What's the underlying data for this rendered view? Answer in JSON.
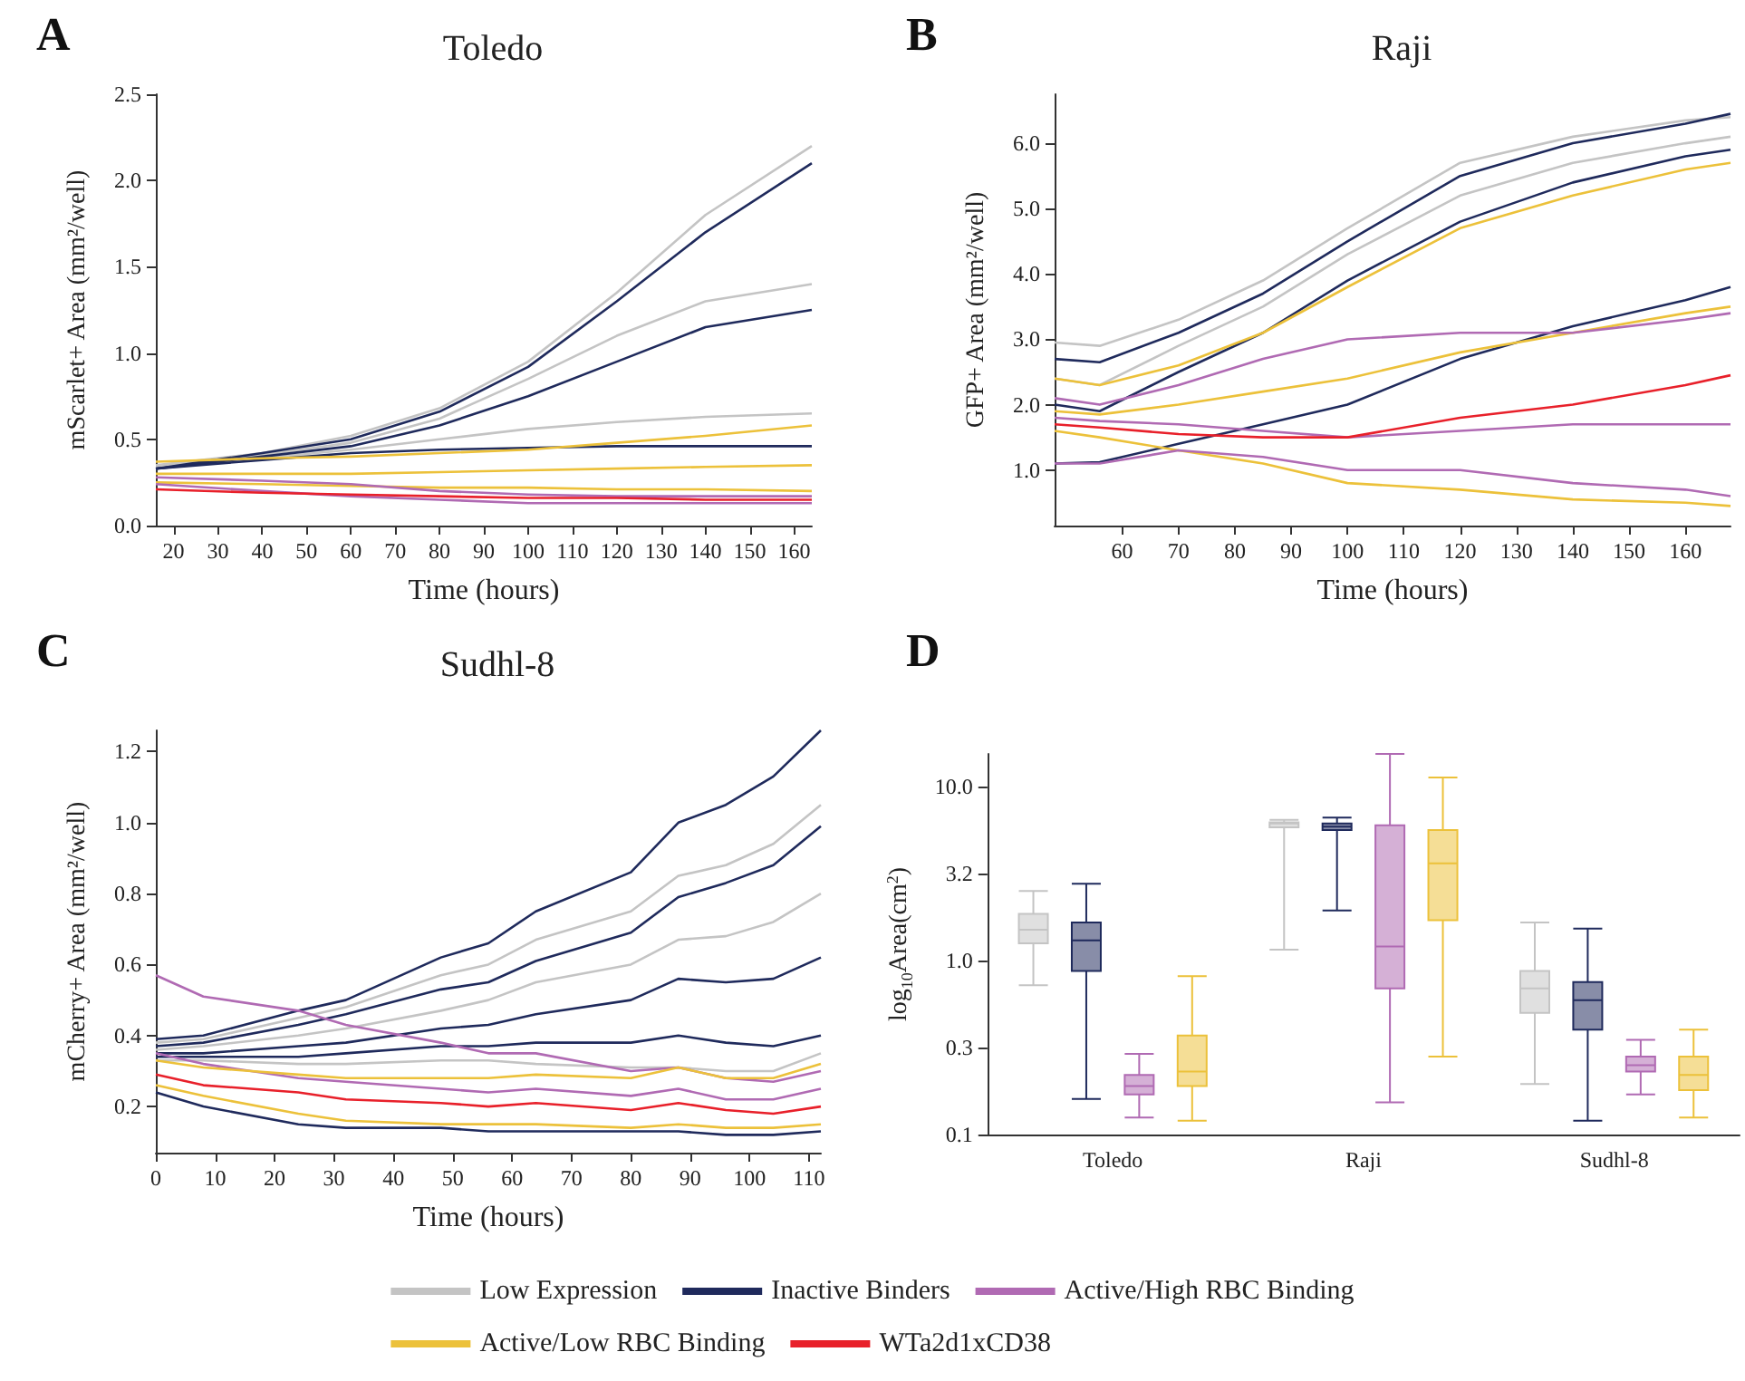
{
  "chart_data": [
    {
      "type": "line",
      "title": "Toledo",
      "annotations": [
        "A"
      ],
      "xlabel": "Time (hours)",
      "ylabel": "mScarlet+ Area (mm²/well)",
      "marker": "none",
      "x": [
        16,
        40,
        60,
        80,
        100,
        120,
        140,
        164
      ],
      "xlim": [
        16,
        164
      ],
      "xticks": [
        20,
        30,
        40,
        50,
        60,
        70,
        80,
        90,
        100,
        110,
        120,
        130,
        140,
        150,
        160
      ],
      "ylim": [
        0,
        2.5
      ],
      "yticks": [
        {
          "value": 0,
          "label": "0.0"
        },
        0.5,
        {
          "value": 1,
          "label": "1.0"
        },
        1.5,
        {
          "value": 2,
          "label": "2.0"
        },
        2.5
      ],
      "series": [
        {
          "color": "#c4c4c4",
          "values": [
            0.35,
            0.42,
            0.52,
            0.68,
            0.95,
            1.35,
            1.8,
            2.2
          ]
        },
        {
          "color": "#c4c4c4",
          "values": [
            0.34,
            0.41,
            0.48,
            0.62,
            0.85,
            1.1,
            1.3,
            1.4
          ]
        },
        {
          "color": "#c4c4c4",
          "values": [
            0.33,
            0.39,
            0.44,
            0.5,
            0.56,
            0.6,
            0.63,
            0.65
          ]
        },
        {
          "color": "#1f2a5c",
          "values": [
            0.33,
            0.42,
            0.5,
            0.66,
            0.92,
            1.3,
            1.7,
            2.1
          ]
        },
        {
          "color": "#1f2a5c",
          "values": [
            0.33,
            0.4,
            0.46,
            0.58,
            0.75,
            0.95,
            1.15,
            1.25
          ]
        },
        {
          "color": "#1f2a5c",
          "values": [
            0.33,
            0.38,
            0.42,
            0.44,
            0.45,
            0.46,
            0.46,
            0.46
          ]
        },
        {
          "color": "#ecc13a",
          "values": [
            0.37,
            0.39,
            0.4,
            0.42,
            0.44,
            0.48,
            0.52,
            0.58
          ]
        },
        {
          "color": "#ecc13a",
          "values": [
            0.3,
            0.3,
            0.3,
            0.31,
            0.32,
            0.33,
            0.34,
            0.35
          ]
        },
        {
          "color": "#ecc13a",
          "values": [
            0.25,
            0.24,
            0.23,
            0.22,
            0.22,
            0.21,
            0.21,
            0.2
          ]
        },
        {
          "color": "#b06ab3",
          "values": [
            0.28,
            0.26,
            0.24,
            0.2,
            0.18,
            0.17,
            0.17,
            0.17
          ]
        },
        {
          "color": "#b06ab3",
          "values": [
            0.24,
            0.2,
            0.17,
            0.15,
            0.13,
            0.13,
            0.13,
            0.13
          ]
        },
        {
          "color": "#e8202a",
          "values": [
            0.21,
            0.19,
            0.18,
            0.17,
            0.16,
            0.16,
            0.15,
            0.15
          ]
        }
      ]
    },
    {
      "type": "line",
      "title": "Raji",
      "annotations": [
        "B"
      ],
      "xlabel": "Time (hours)",
      "ylabel": "GFP+ Area (mm²/well)",
      "marker": "none",
      "x": [
        48,
        56,
        70,
        85,
        100,
        120,
        140,
        160,
        168
      ],
      "xlim": [
        48,
        168
      ],
      "xticks": [
        60,
        70,
        80,
        90,
        100,
        110,
        120,
        130,
        140,
        150,
        160
      ],
      "ylim": [
        0.15,
        6.75
      ],
      "yticks": [
        {
          "value": 1,
          "label": "1.0"
        },
        {
          "value": 2,
          "label": "2.0"
        },
        {
          "value": 3,
          "label": "3.0"
        },
        {
          "value": 4,
          "label": "4.0"
        },
        {
          "value": 5,
          "label": "5.0"
        },
        {
          "value": 6,
          "label": "6.0"
        }
      ],
      "series": [
        {
          "color": "#c4c4c4",
          "values": [
            2.95,
            2.9,
            3.3,
            3.9,
            4.7,
            5.7,
            6.1,
            6.35,
            6.4
          ]
        },
        {
          "color": "#c4c4c4",
          "values": [
            2.4,
            2.3,
            2.9,
            3.5,
            4.3,
            5.2,
            5.7,
            6.0,
            6.1
          ]
        },
        {
          "color": "#1f2a5c",
          "values": [
            2.7,
            2.65,
            3.1,
            3.7,
            4.5,
            5.5,
            6.0,
            6.3,
            6.45
          ]
        },
        {
          "color": "#1f2a5c",
          "values": [
            2.0,
            1.9,
            2.5,
            3.1,
            3.9,
            4.8,
            5.4,
            5.8,
            5.9
          ]
        },
        {
          "color": "#1f2a5c",
          "values": [
            1.1,
            1.12,
            1.4,
            1.7,
            2.0,
            2.7,
            3.2,
            3.6,
            3.8
          ]
        },
        {
          "color": "#ecc13a",
          "values": [
            2.4,
            2.3,
            2.6,
            3.1,
            3.8,
            4.7,
            5.2,
            5.6,
            5.7
          ]
        },
        {
          "color": "#ecc13a",
          "values": [
            1.9,
            1.85,
            2.0,
            2.2,
            2.4,
            2.8,
            3.1,
            3.4,
            3.5
          ]
        },
        {
          "color": "#ecc13a",
          "values": [
            1.6,
            1.5,
            1.3,
            1.1,
            0.8,
            0.7,
            0.55,
            0.5,
            0.45
          ]
        },
        {
          "color": "#b06ab3",
          "values": [
            2.1,
            2.0,
            2.3,
            2.7,
            3.0,
            3.1,
            3.1,
            3.3,
            3.4
          ]
        },
        {
          "color": "#b06ab3",
          "values": [
            1.8,
            1.75,
            1.7,
            1.6,
            1.5,
            1.6,
            1.7,
            1.7,
            1.7
          ]
        },
        {
          "color": "#b06ab3",
          "values": [
            1.1,
            1.1,
            1.3,
            1.2,
            1.0,
            1.0,
            0.8,
            0.7,
            0.6
          ]
        },
        {
          "color": "#e8202a",
          "values": [
            1.7,
            1.65,
            1.55,
            1.5,
            1.5,
            1.8,
            2.0,
            2.3,
            2.45
          ]
        }
      ]
    },
    {
      "type": "line",
      "title": "Sudhl-8",
      "annotations": [
        "C"
      ],
      "xlabel": "Time (hours)",
      "ylabel": "mCherry+ Area (mm²/well)",
      "marker": "none",
      "legend": "bottom",
      "x": [
        0,
        8,
        24,
        32,
        48,
        56,
        64,
        80,
        88,
        96,
        104,
        112
      ],
      "xlim": [
        0,
        112
      ],
      "xticks": [
        0,
        10,
        20,
        30,
        40,
        50,
        60,
        70,
        80,
        90,
        100,
        110
      ],
      "ylim": [
        0.07,
        1.26
      ],
      "yticks": [
        0.2,
        0.4,
        0.6,
        0.8,
        {
          "value": 1,
          "label": "1.0"
        },
        1.2
      ],
      "series": [
        {
          "name": "Low Expression",
          "color": "#c4c4c4",
          "values": [
            0.38,
            0.39,
            0.45,
            0.48,
            0.57,
            0.6,
            0.67,
            0.75,
            0.85,
            0.88,
            0.94,
            1.05
          ]
        },
        {
          "color": "#c4c4c4",
          "values": [
            0.36,
            0.37,
            0.4,
            0.42,
            0.47,
            0.5,
            0.55,
            0.6,
            0.67,
            0.68,
            0.72,
            0.8
          ]
        },
        {
          "color": "#c4c4c4",
          "values": [
            0.33,
            0.33,
            0.32,
            0.32,
            0.33,
            0.33,
            0.32,
            0.31,
            0.31,
            0.3,
            0.3,
            0.35
          ]
        },
        {
          "name": "Inactive Binders",
          "color": "#1f2a5c",
          "values": [
            0.39,
            0.4,
            0.47,
            0.5,
            0.62,
            0.66,
            0.75,
            0.86,
            1.0,
            1.05,
            1.13,
            1.26
          ]
        },
        {
          "color": "#1f2a5c",
          "values": [
            0.37,
            0.38,
            0.43,
            0.46,
            0.53,
            0.55,
            0.61,
            0.69,
            0.79,
            0.83,
            0.88,
            0.99
          ]
        },
        {
          "color": "#1f2a5c",
          "values": [
            0.35,
            0.35,
            0.37,
            0.38,
            0.42,
            0.43,
            0.46,
            0.5,
            0.56,
            0.55,
            0.56,
            0.62
          ]
        },
        {
          "color": "#1f2a5c",
          "values": [
            0.34,
            0.34,
            0.34,
            0.35,
            0.37,
            0.37,
            0.38,
            0.38,
            0.4,
            0.38,
            0.37,
            0.4
          ]
        },
        {
          "color": "#1f2a5c",
          "values": [
            0.24,
            0.2,
            0.15,
            0.14,
            0.14,
            0.13,
            0.13,
            0.13,
            0.13,
            0.12,
            0.12,
            0.13
          ]
        },
        {
          "name": "Active/High RBC Binding",
          "color": "#b06ab3",
          "values": [
            0.57,
            0.51,
            0.47,
            0.43,
            0.38,
            0.35,
            0.35,
            0.3,
            0.31,
            0.28,
            0.27,
            0.3
          ]
        },
        {
          "color": "#b06ab3",
          "values": [
            0.35,
            0.32,
            0.28,
            0.27,
            0.25,
            0.24,
            0.25,
            0.23,
            0.25,
            0.22,
            0.22,
            0.25
          ]
        },
        {
          "name": "Active/Low RBC Binding",
          "color": "#ecc13a",
          "values": [
            0.33,
            0.31,
            0.29,
            0.28,
            0.28,
            0.28,
            0.29,
            0.28,
            0.31,
            0.28,
            0.28,
            0.32
          ]
        },
        {
          "color": "#ecc13a",
          "values": [
            0.26,
            0.23,
            0.18,
            0.16,
            0.15,
            0.15,
            0.15,
            0.14,
            0.15,
            0.14,
            0.14,
            0.15
          ]
        },
        {
          "name": "WTa2d1xCD38",
          "color": "#e8202a",
          "values": [
            0.29,
            0.26,
            0.24,
            0.22,
            0.21,
            0.2,
            0.21,
            0.19,
            0.21,
            0.19,
            0.18,
            0.2
          ]
        }
      ]
    },
    {
      "type": "box",
      "annotations": [
        "D"
      ],
      "ylabel": "log$_{10}$Area(cm$^{2}$)",
      "log": "y",
      "categories": [
        "Toledo",
        "Raji",
        "Sudhl-8"
      ],
      "ylim": [
        0.1,
        15.3
      ],
      "yticks": [
        0.1,
        {
          "value": 0.316,
          "label": "0.3"
        },
        {
          "value": 1,
          "label": "1.0"
        },
        {
          "value": 3.16,
          "label": "3.2"
        },
        {
          "value": 10,
          "label": "10.0"
        }
      ],
      "series": [
        {
          "color": "#c4c4c4",
          "boxes": [
            {
              "low": 0.72,
              "q1": 1.25,
              "median": 1.5,
              "q3": 1.85,
              "high": 2.5
            },
            {
              "low": 1.15,
              "q1": 5.8,
              "median": 6.1,
              "q3": 6.2,
              "high": 6.4
            },
            {
              "low": 0.195,
              "q1": 0.5,
              "median": 0.69,
              "q3": 0.87,
              "high": 1.65
            }
          ]
        },
        {
          "color": "#1f2a5c",
          "boxes": [
            {
              "low": 0.16,
              "q1": 0.87,
              "median": 1.3,
              "q3": 1.65,
              "high": 2.75
            },
            {
              "low": 1.93,
              "q1": 5.6,
              "median": 5.85,
              "q3": 6.1,
              "high": 6.6
            },
            {
              "low": 0.12,
              "q1": 0.4,
              "median": 0.59,
              "q3": 0.75,
              "high": 1.52
            }
          ]
        },
        {
          "color": "#b06ab3",
          "boxes": [
            {
              "low": 0.125,
              "q1": 0.17,
              "median": 0.19,
              "q3": 0.22,
              "high": 0.29
            },
            {
              "low": 0.153,
              "q1": 0.69,
              "median": 1.2,
              "q3": 5.95,
              "high": 15.3
            },
            {
              "low": 0.17,
              "q1": 0.23,
              "median": 0.25,
              "q3": 0.28,
              "high": 0.35
            }
          ]
        },
        {
          "color": "#ecc13a",
          "boxes": [
            {
              "low": 0.12,
              "q1": 0.19,
              "median": 0.23,
              "q3": 0.37,
              "high": 0.81
            },
            {
              "low": 0.28,
              "q1": 1.7,
              "median": 3.6,
              "q3": 5.6,
              "high": 11.2
            },
            {
              "low": 0.125,
              "q1": 0.18,
              "median": 0.22,
              "q3": 0.28,
              "high": 0.4
            }
          ]
        }
      ]
    }
  ]
}
